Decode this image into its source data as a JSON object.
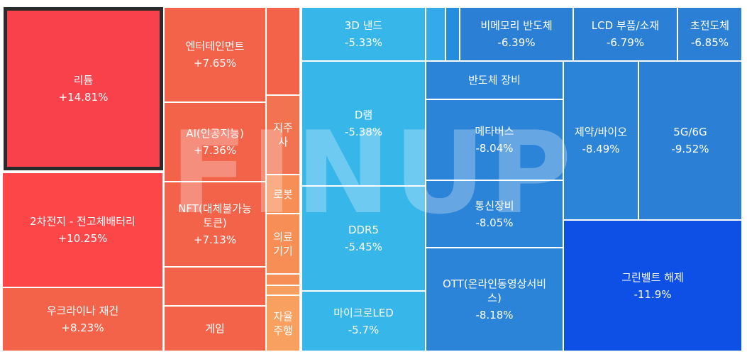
{
  "chart_data": {
    "type": "treemap",
    "tiles": [
      {
        "label": "리튬",
        "value": "+14.81%"
      },
      {
        "label": "2차전지 - 전고체배터리",
        "value": "+10.25%"
      },
      {
        "label": "우크라이나 재건",
        "value": "+8.23%"
      },
      {
        "label": "엔터테인먼트",
        "value": "+7.65%"
      },
      {
        "label": "AI(인공지능)",
        "value": "+7.36%"
      },
      {
        "label": "NFT(대체불가능\n토큰)",
        "value": "+7.13%"
      },
      {
        "label": "",
        "value": ""
      },
      {
        "label": "게임",
        "value": ""
      },
      {
        "label": "",
        "value": ""
      },
      {
        "label": "지주\n사",
        "value": ""
      },
      {
        "label": "로봇",
        "value": ""
      },
      {
        "label": "의료\n기기",
        "value": ""
      },
      {
        "label": "",
        "value": ""
      },
      {
        "label": "",
        "value": ""
      },
      {
        "label": "자율\n주행",
        "value": ""
      },
      {
        "label": "3D 낸드",
        "value": "-5.33%"
      },
      {
        "label": "D램",
        "value": "-5.38%"
      },
      {
        "label": "DDR5",
        "value": "-5.45%"
      },
      {
        "label": "마이크로LED",
        "value": "-5.7%"
      },
      {
        "label": "",
        "value": ""
      },
      {
        "label": "",
        "value": ""
      },
      {
        "label": "비메모리 반도체",
        "value": "-6.39%"
      },
      {
        "label": "LCD 부품/소재",
        "value": "-6.79%"
      },
      {
        "label": "초전도체",
        "value": "-6.85%"
      },
      {
        "label": "반도체 장비",
        "value": ""
      },
      {
        "label": "메타버스",
        "value": "-8.04%"
      },
      {
        "label": "통신장비",
        "value": "-8.05%"
      },
      {
        "label": "OTT(온라인동영상서비\n스)",
        "value": "-8.18%"
      },
      {
        "label": "제약/바이오",
        "value": "-8.49%"
      },
      {
        "label": "5G/6G",
        "value": "-9.52%"
      },
      {
        "label": "그린벨트 해제",
        "value": "-11.9%"
      }
    ],
    "watermark": "FINUP"
  }
}
